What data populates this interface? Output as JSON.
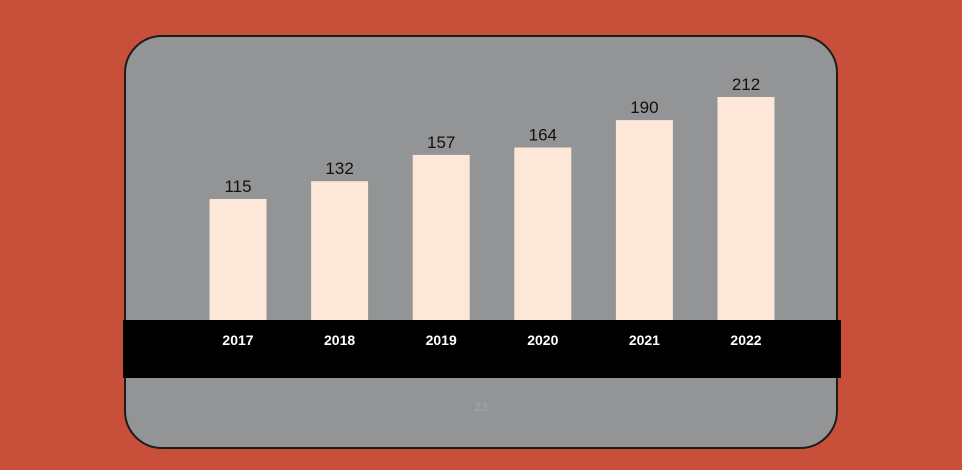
{
  "chart_data": {
    "type": "bar",
    "categories": [
      "2017",
      "2018",
      "2019",
      "2020",
      "2021",
      "2022"
    ],
    "values": [
      115,
      132,
      157,
      164,
      190,
      212
    ],
    "title": "",
    "xlabel": "",
    "ylabel": "",
    "ylim": [
      0,
      212
    ],
    "grid": false,
    "data_labels": true
  },
  "footnote": "23",
  "colors": {
    "background": "#c8503a",
    "card": "#929496",
    "bar": "#fde7d9",
    "axis_band": "#000000",
    "tick_text": "#ffffff",
    "value_text": "#111111"
  }
}
